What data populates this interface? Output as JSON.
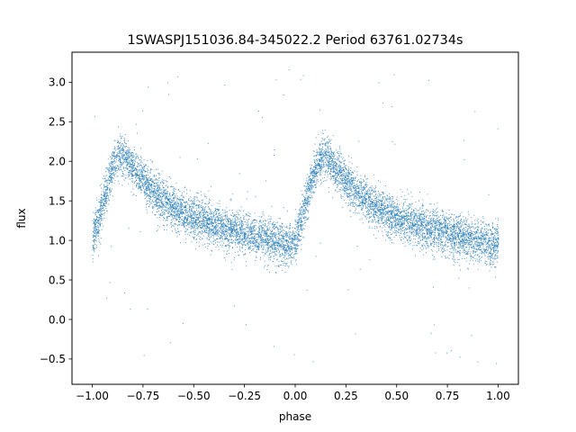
{
  "chart_data": {
    "type": "scatter",
    "title": "1SWASPJ151036.84-345022.2 Period 63761.02734s",
    "xlabel": "phase",
    "ylabel": "flux",
    "xlim": [
      -1.1,
      1.1
    ],
    "ylim": [
      -0.82,
      3.38
    ],
    "xticks": [
      -1.0,
      -0.75,
      -0.5,
      -0.25,
      0.0,
      0.25,
      0.5,
      0.75,
      1.0
    ],
    "xtick_labels": [
      "−1.00",
      "−0.75",
      "−0.50",
      "−0.25",
      "0.00",
      "0.25",
      "0.50",
      "0.75",
      "1.00"
    ],
    "yticks": [
      -0.5,
      0.0,
      0.5,
      1.0,
      1.5,
      2.0,
      2.5,
      3.0
    ],
    "ytick_labels": [
      "−0.5",
      "0.0",
      "0.5",
      "1.0",
      "1.5",
      "2.0",
      "2.5",
      "3.0"
    ],
    "grid": false,
    "point_color": "#1f77b4",
    "phase_range": [
      -1.0,
      1.0
    ],
    "light_curve": {
      "phase": [
        0.0,
        0.02,
        0.05,
        0.08,
        0.11,
        0.14,
        0.16,
        0.2,
        0.25,
        0.3,
        0.35,
        0.4,
        0.45,
        0.5,
        0.6,
        0.7,
        0.8,
        0.9,
        0.97,
        1.0
      ],
      "flux": [
        0.98,
        1.2,
        1.48,
        1.78,
        2.0,
        2.08,
        2.06,
        1.92,
        1.76,
        1.62,
        1.51,
        1.42,
        1.35,
        1.29,
        1.2,
        1.13,
        1.06,
        1.0,
        0.94,
        1.02
      ]
    },
    "scatter_sigma": 0.13,
    "outlier_range": [
      -0.6,
      3.2
    ]
  }
}
